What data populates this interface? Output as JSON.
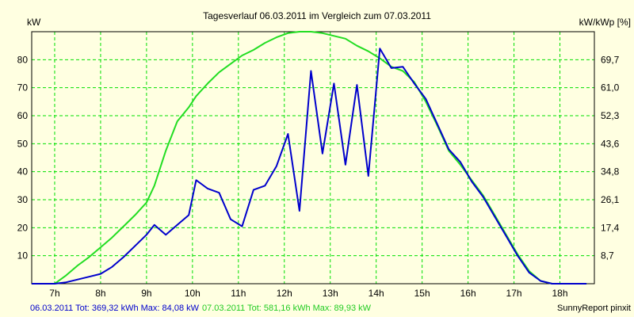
{
  "colors": {
    "background": "#ffffe1",
    "grid": "#00e000",
    "series1": "#0000cc",
    "series2": "#22dd22",
    "footer_blue": "#0000cc",
    "footer_green": "#22cc22"
  },
  "footer": {
    "series1_text": "06.03.2011 Tot: 369,32 kWh Max: 84,08 kW",
    "series2_text": "07.03.2011 Tot: 581,16 kWh Max: 89,93 kW",
    "brand": "SunnyReport pinxit"
  },
  "chart_data": {
    "type": "line",
    "title": "Tagesverlauf 06.03.2011 im Vergleich zum 07.03.2011",
    "ylabel_left": "kW",
    "ylabel_right": "kW/kWp [%]",
    "xlim": [
      6.5,
      18.75
    ],
    "ylim": [
      0,
      90
    ],
    "grid": true,
    "x_ticks": [
      {
        "x": 7,
        "label": "7h"
      },
      {
        "x": 8,
        "label": "8h"
      },
      {
        "x": 9,
        "label": "9h"
      },
      {
        "x": 10,
        "label": "10h"
      },
      {
        "x": 11,
        "label": "11h"
      },
      {
        "x": 12,
        "label": "12h"
      },
      {
        "x": 13,
        "label": "13h"
      },
      {
        "x": 14,
        "label": "14h"
      },
      {
        "x": 15,
        "label": "15h"
      },
      {
        "x": 16,
        "label": "16h"
      },
      {
        "x": 17,
        "label": "17h"
      },
      {
        "x": 18,
        "label": "18h"
      }
    ],
    "y_ticks_left": [
      {
        "y": 10,
        "label": "10"
      },
      {
        "y": 20,
        "label": "20"
      },
      {
        "y": 30,
        "label": "30"
      },
      {
        "y": 40,
        "label": "40"
      },
      {
        "y": 50,
        "label": "50"
      },
      {
        "y": 60,
        "label": "60"
      },
      {
        "y": 70,
        "label": "70"
      },
      {
        "y": 80,
        "label": "80"
      }
    ],
    "y_ticks_right": [
      {
        "y": 10,
        "label": "8,7"
      },
      {
        "y": 20,
        "label": "17,4"
      },
      {
        "y": 30,
        "label": "26,1"
      },
      {
        "y": 40,
        "label": "34,8"
      },
      {
        "y": 50,
        "label": "43,6"
      },
      {
        "y": 60,
        "label": "52,3"
      },
      {
        "y": 70,
        "label": "61,0"
      },
      {
        "y": 80,
        "label": "69,7"
      }
    ],
    "series": [
      {
        "name": "06.03.2011",
        "color": "#0000cc",
        "x": [
          6.5,
          6.75,
          7.0,
          7.25,
          7.5,
          7.75,
          8.0,
          8.25,
          8.5,
          8.75,
          9.0,
          9.17,
          9.42,
          9.67,
          9.92,
          10.08,
          10.33,
          10.58,
          10.83,
          11.08,
          11.33,
          11.58,
          11.83,
          12.08,
          12.33,
          12.58,
          12.83,
          13.08,
          13.33,
          13.58,
          13.83,
          14.08,
          14.33,
          14.58,
          14.83,
          15.08,
          15.33,
          15.58,
          15.83,
          16.08,
          16.33,
          16.58,
          16.83,
          17.08,
          17.33,
          17.58,
          17.83,
          18.08,
          18.33,
          18.58
        ],
        "y": [
          0,
          0,
          0,
          0.5,
          1.5,
          2.5,
          3.5,
          6,
          9.5,
          13.5,
          17.5,
          21,
          17.5,
          21,
          24.5,
          37,
          34,
          32.5,
          23,
          20.5,
          33.5,
          35,
          42,
          53.5,
          26,
          76,
          46.5,
          71.5,
          42.5,
          71,
          38.5,
          84,
          77,
          77.5,
          71.5,
          66,
          57,
          48,
          43.5,
          36.5,
          31,
          24,
          17,
          10,
          4,
          1,
          0,
          0,
          0,
          0
        ]
      },
      {
        "name": "07.03.2011",
        "color": "#22dd22",
        "x": [
          6.5,
          6.75,
          7.0,
          7.25,
          7.5,
          7.75,
          8.0,
          8.25,
          8.5,
          8.75,
          9.0,
          9.17,
          9.42,
          9.67,
          9.92,
          10.08,
          10.33,
          10.58,
          10.83,
          11.08,
          11.33,
          11.58,
          11.83,
          12.08,
          12.33,
          12.58,
          12.83,
          13.08,
          13.33,
          13.58,
          13.83,
          14.08,
          14.33,
          14.58,
          14.83,
          15.08,
          15.33,
          15.58,
          15.83,
          16.08,
          16.33,
          16.58,
          16.83,
          17.08,
          17.33,
          17.58,
          17.83,
          18.08,
          18.33,
          18.58
        ],
        "y": [
          0,
          0,
          0,
          3,
          6.5,
          9.5,
          13,
          16.5,
          20.5,
          24.5,
          29,
          35,
          47.5,
          58,
          63,
          67,
          71.5,
          75.5,
          78.5,
          81.5,
          83.5,
          86,
          88,
          89.5,
          90,
          90,
          89.5,
          88.5,
          87.5,
          85,
          83,
          80.5,
          77.5,
          76,
          72,
          65,
          56.5,
          47.5,
          42.5,
          37,
          31.5,
          24.5,
          17.5,
          10.5,
          4.5,
          1,
          0,
          0,
          0,
          0
        ]
      }
    ]
  }
}
